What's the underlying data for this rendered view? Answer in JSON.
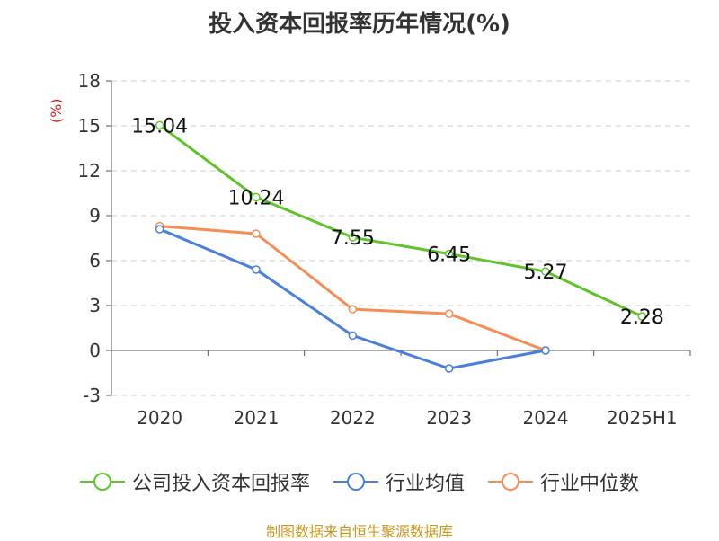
{
  "chart_data": {
    "type": "line",
    "title": "投入资本回报率历年情况(%)",
    "ylabel": "(%)",
    "xlabel": "",
    "categories": [
      "2020",
      "2021",
      "2022",
      "2023",
      "2024",
      "2025H1"
    ],
    "ylim": [
      -3,
      18
    ],
    "yticks": [
      -3,
      0,
      3,
      6,
      9,
      12,
      15,
      18
    ],
    "grid": true,
    "legend_position": "bottom",
    "series": [
      {
        "name": "公司投入资本回报率",
        "color": "#5ec42a",
        "values": [
          15.04,
          10.24,
          7.55,
          6.45,
          5.27,
          2.28
        ],
        "labels": [
          "15.04",
          "10.24",
          "7.55",
          "6.45",
          "5.27",
          "2.28"
        ]
      },
      {
        "name": "行业均值",
        "color": "#4a7fdc",
        "values": [
          8.1,
          5.4,
          1.0,
          -1.2,
          0.0,
          null
        ]
      },
      {
        "name": "行业中位数",
        "color": "#f58d55",
        "values": [
          8.3,
          7.8,
          2.75,
          2.45,
          0.0,
          null
        ]
      }
    ]
  },
  "footer": {
    "source": "制图数据来自恒生聚源数据库"
  }
}
